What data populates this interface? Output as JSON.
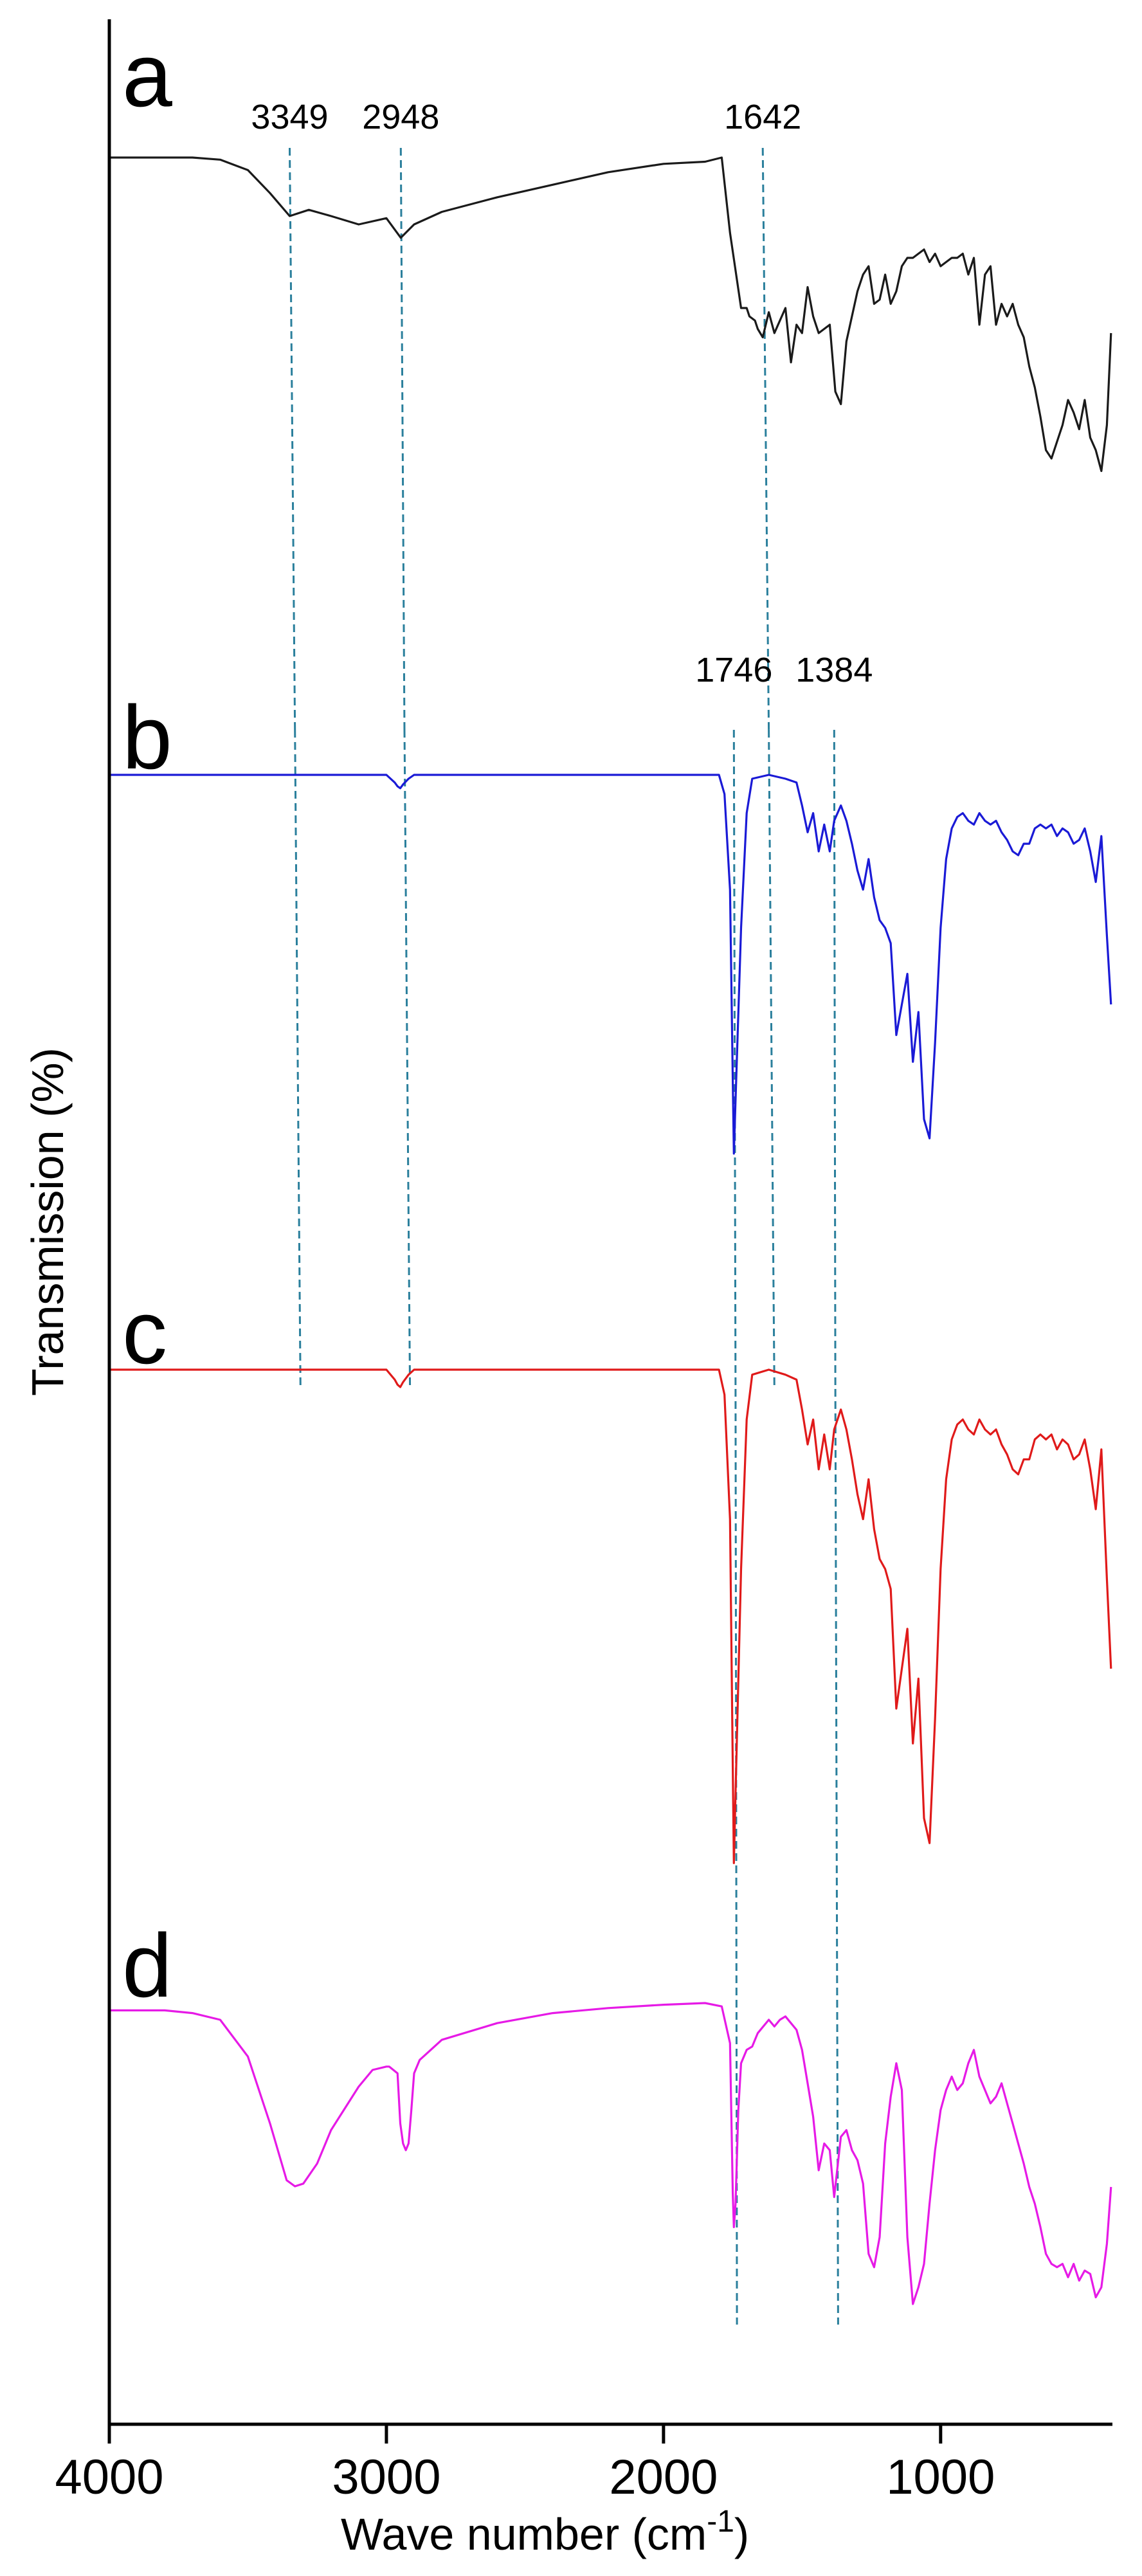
{
  "chart_data": {
    "type": "line",
    "xlabel": "Wave number (cm-1)",
    "xlabel_main": "Wave number (cm",
    "xlabel_sup": "-1",
    "xlabel_close": ")",
    "ylabel": "Transmission (%)",
    "xlim": [
      4000,
      380
    ],
    "x_reversed": true,
    "x_ticks": [
      4000,
      3000,
      2000,
      1000
    ],
    "x_tick_labels": [
      "4000",
      "3000",
      "2000",
      "1000"
    ],
    "y_unit": "arbitrary, stacked spectra",
    "grid": false,
    "legend": "none",
    "reference_lines": [
      {
        "label": "3349",
        "x": 3349,
        "spans": [
          [
            3349,
            3330
          ],
          [
            3330,
            3310
          ]
        ]
      },
      {
        "label": "2948",
        "x": 2948,
        "spans": [
          [
            2948,
            2935
          ],
          [
            2935,
            2915
          ]
        ]
      },
      {
        "label": "1642",
        "x": 1642,
        "spans": [
          [
            1642,
            1620
          ],
          [
            1620,
            1600
          ]
        ]
      },
      {
        "label": "1746",
        "x": 1746,
        "spans": [
          [
            1746,
            1740
          ],
          [
            1740,
            1735
          ]
        ]
      },
      {
        "label": "1384",
        "x": 1384,
        "spans": [
          [
            1384,
            1380
          ],
          [
            1380,
            1370
          ]
        ]
      }
    ],
    "series": [
      {
        "name": "a",
        "color": "#1a1a1a",
        "x": [
          4000,
          3800,
          3700,
          3600,
          3500,
          3420,
          3349,
          3280,
          3200,
          3100,
          3000,
          2948,
          2900,
          2800,
          2600,
          2400,
          2200,
          2000,
          1850,
          1790,
          1760,
          1720,
          1700,
          1690,
          1670,
          1660,
          1642,
          1620,
          1600,
          1580,
          1560,
          1540,
          1520,
          1500,
          1480,
          1460,
          1440,
          1420,
          1400,
          1380,
          1360,
          1340,
          1320,
          1300,
          1280,
          1260,
          1240,
          1220,
          1200,
          1180,
          1160,
          1140,
          1120,
          1100,
          1080,
          1060,
          1040,
          1020,
          1000,
          980,
          960,
          940,
          920,
          900,
          880,
          860,
          840,
          820,
          800,
          780,
          760,
          740,
          720,
          700,
          680,
          660,
          640,
          620,
          600,
          580,
          560,
          540,
          520,
          500,
          480,
          460,
          440,
          420,
          400,
          385
        ],
        "y": [
          1.0,
          1.0,
          1.0,
          0.995,
          0.97,
          0.915,
          0.86,
          0.875,
          0.86,
          0.84,
          0.855,
          0.808,
          0.84,
          0.87,
          0.905,
          0.935,
          0.965,
          0.985,
          0.99,
          1.0,
          0.82,
          0.64,
          0.64,
          0.62,
          0.61,
          0.59,
          0.57,
          0.63,
          0.58,
          0.61,
          0.64,
          0.51,
          0.6,
          0.58,
          0.69,
          0.62,
          0.58,
          0.59,
          0.6,
          0.44,
          0.41,
          0.56,
          0.62,
          0.68,
          0.72,
          0.74,
          0.65,
          0.66,
          0.72,
          0.65,
          0.68,
          0.74,
          0.76,
          0.76,
          0.77,
          0.78,
          0.75,
          0.77,
          0.74,
          0.75,
          0.76,
          0.76,
          0.77,
          0.72,
          0.76,
          0.6,
          0.72,
          0.74,
          0.6,
          0.65,
          0.62,
          0.65,
          0.6,
          0.57,
          0.5,
          0.45,
          0.38,
          0.3,
          0.28,
          0.32,
          0.36,
          0.42,
          0.39,
          0.35,
          0.42,
          0.33,
          0.3,
          0.25,
          0.36,
          0.58
        ]
      },
      {
        "name": "b",
        "color": "#1a1ad6",
        "x": [
          4000,
          3000,
          2970,
          2960,
          2950,
          2940,
          2920,
          2900,
          1800,
          1780,
          1760,
          1750,
          1746,
          1740,
          1720,
          1700,
          1680,
          1620,
          1560,
          1520,
          1500,
          1480,
          1460,
          1440,
          1420,
          1400,
          1384,
          1360,
          1340,
          1320,
          1300,
          1280,
          1260,
          1240,
          1220,
          1200,
          1180,
          1160,
          1140,
          1120,
          1100,
          1080,
          1060,
          1040,
          1020,
          1000,
          980,
          960,
          940,
          920,
          900,
          880,
          860,
          840,
          820,
          800,
          780,
          760,
          740,
          720,
          700,
          680,
          660,
          640,
          620,
          600,
          580,
          560,
          540,
          520,
          500,
          480,
          460,
          440,
          420,
          400,
          385
        ],
        "y": [
          1.0,
          1.0,
          0.98,
          0.97,
          0.965,
          0.975,
          0.99,
          1.0,
          1.0,
          0.95,
          0.7,
          0.2,
          0.01,
          0.15,
          0.6,
          0.9,
          0.99,
          1.0,
          0.99,
          0.98,
          0.92,
          0.85,
          0.9,
          0.8,
          0.87,
          0.8,
          0.88,
          0.92,
          0.88,
          0.82,
          0.75,
          0.7,
          0.78,
          0.68,
          0.62,
          0.6,
          0.56,
          0.32,
          0.4,
          0.48,
          0.25,
          0.38,
          0.1,
          0.05,
          0.3,
          0.6,
          0.78,
          0.86,
          0.89,
          0.9,
          0.88,
          0.87,
          0.9,
          0.88,
          0.87,
          0.88,
          0.85,
          0.83,
          0.8,
          0.79,
          0.82,
          0.82,
          0.86,
          0.87,
          0.86,
          0.87,
          0.84,
          0.86,
          0.85,
          0.82,
          0.83,
          0.86,
          0.8,
          0.72,
          0.84,
          0.58,
          0.4
        ]
      },
      {
        "name": "c",
        "color": "#e01a1a",
        "x": [
          4000,
          3000,
          2970,
          2960,
          2950,
          2940,
          2920,
          2900,
          1800,
          1780,
          1760,
          1750,
          1746,
          1740,
          1720,
          1700,
          1680,
          1620,
          1560,
          1520,
          1500,
          1480,
          1460,
          1440,
          1420,
          1400,
          1384,
          1360,
          1340,
          1320,
          1300,
          1280,
          1260,
          1240,
          1220,
          1200,
          1180,
          1160,
          1140,
          1120,
          1100,
          1080,
          1060,
          1040,
          1020,
          1000,
          980,
          960,
          940,
          920,
          900,
          880,
          860,
          840,
          820,
          800,
          780,
          760,
          740,
          720,
          700,
          680,
          660,
          640,
          620,
          600,
          580,
          560,
          540,
          520,
          500,
          480,
          460,
          440,
          420,
          400,
          385
        ],
        "y": [
          1.0,
          1.0,
          0.98,
          0.97,
          0.965,
          0.975,
          0.99,
          1.0,
          1.0,
          0.95,
          0.7,
          0.2,
          0.01,
          0.15,
          0.6,
          0.9,
          0.99,
          1.0,
          0.99,
          0.98,
          0.92,
          0.85,
          0.9,
          0.8,
          0.87,
          0.8,
          0.88,
          0.92,
          0.88,
          0.82,
          0.75,
          0.7,
          0.78,
          0.68,
          0.62,
          0.6,
          0.56,
          0.32,
          0.4,
          0.48,
          0.25,
          0.38,
          0.1,
          0.05,
          0.3,
          0.6,
          0.78,
          0.86,
          0.89,
          0.9,
          0.88,
          0.87,
          0.9,
          0.88,
          0.87,
          0.88,
          0.85,
          0.83,
          0.8,
          0.79,
          0.82,
          0.82,
          0.86,
          0.87,
          0.86,
          0.87,
          0.84,
          0.86,
          0.85,
          0.82,
          0.83,
          0.86,
          0.8,
          0.72,
          0.84,
          0.58,
          0.4
        ]
      },
      {
        "name": "d",
        "color": "#e61ae6",
        "x": [
          4000,
          3800,
          3700,
          3600,
          3500,
          3420,
          3360,
          3330,
          3300,
          3250,
          3200,
          3100,
          3050,
          3000,
          2990,
          2960,
          2950,
          2940,
          2930,
          2920,
          2910,
          2900,
          2880,
          2800,
          2600,
          2400,
          2200,
          2000,
          1850,
          1790,
          1760,
          1750,
          1746,
          1740,
          1730,
          1720,
          1700,
          1680,
          1660,
          1620,
          1600,
          1580,
          1560,
          1520,
          1500,
          1480,
          1460,
          1440,
          1420,
          1400,
          1384,
          1360,
          1340,
          1320,
          1300,
          1280,
          1260,
          1240,
          1220,
          1200,
          1180,
          1160,
          1140,
          1120,
          1100,
          1080,
          1060,
          1040,
          1020,
          1000,
          980,
          960,
          940,
          920,
          900,
          880,
          860,
          840,
          820,
          800,
          780,
          760,
          740,
          720,
          700,
          680,
          660,
          640,
          620,
          600,
          580,
          560,
          540,
          520,
          500,
          480,
          460,
          440,
          420,
          400,
          385
        ],
        "y": [
          0.978,
          0.978,
          0.97,
          0.95,
          0.84,
          0.64,
          0.47,
          0.452,
          0.46,
          0.52,
          0.62,
          0.75,
          0.8,
          0.81,
          0.81,
          0.79,
          0.64,
          0.58,
          0.56,
          0.58,
          0.68,
          0.79,
          0.83,
          0.89,
          0.94,
          0.97,
          0.985,
          0.995,
          1.0,
          0.99,
          0.88,
          0.43,
          0.33,
          0.4,
          0.68,
          0.82,
          0.86,
          0.87,
          0.91,
          0.95,
          0.93,
          0.95,
          0.96,
          0.92,
          0.86,
          0.76,
          0.66,
          0.5,
          0.58,
          0.56,
          0.42,
          0.6,
          0.62,
          0.56,
          0.53,
          0.46,
          0.25,
          0.21,
          0.3,
          0.58,
          0.72,
          0.82,
          0.74,
          0.3,
          0.1,
          0.15,
          0.22,
          0.4,
          0.56,
          0.68,
          0.74,
          0.78,
          0.74,
          0.76,
          0.82,
          0.86,
          0.78,
          0.74,
          0.7,
          0.72,
          0.76,
          0.7,
          0.64,
          0.58,
          0.52,
          0.45,
          0.4,
          0.33,
          0.25,
          0.22,
          0.21,
          0.22,
          0.18,
          0.22,
          0.17,
          0.2,
          0.19,
          0.12,
          0.15,
          0.28,
          0.45
        ]
      }
    ]
  }
}
